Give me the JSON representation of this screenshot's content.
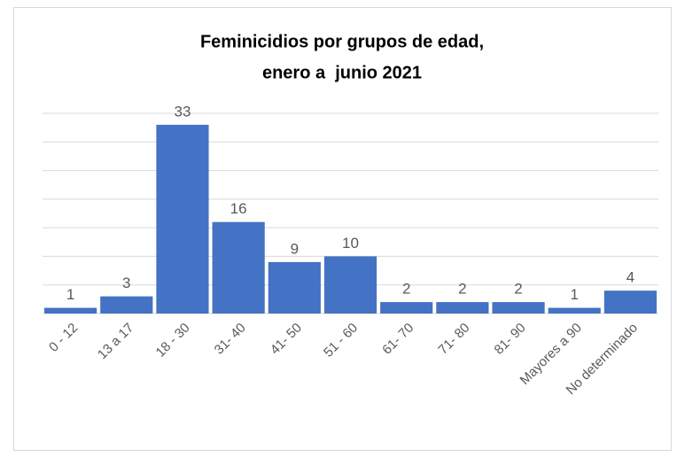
{
  "chart_data": {
    "type": "bar",
    "title": [
      "Feminicidios por grupos de edad,",
      "enero a  junio 2021"
    ],
    "categories": [
      "0 - 12",
      "13 a 17",
      "18 - 30",
      "31- 40",
      "41- 50",
      "51 - 60",
      "61- 70",
      "71- 80",
      "81- 90",
      "Mayores a 90",
      "No determinado"
    ],
    "values": [
      1,
      3,
      33,
      16,
      9,
      10,
      2,
      2,
      2,
      1,
      4
    ],
    "color": "#4472c4",
    "ylim": [
      0,
      35
    ],
    "yticks": [
      0,
      5,
      10,
      15,
      20,
      25,
      30,
      35
    ],
    "grid": true
  }
}
